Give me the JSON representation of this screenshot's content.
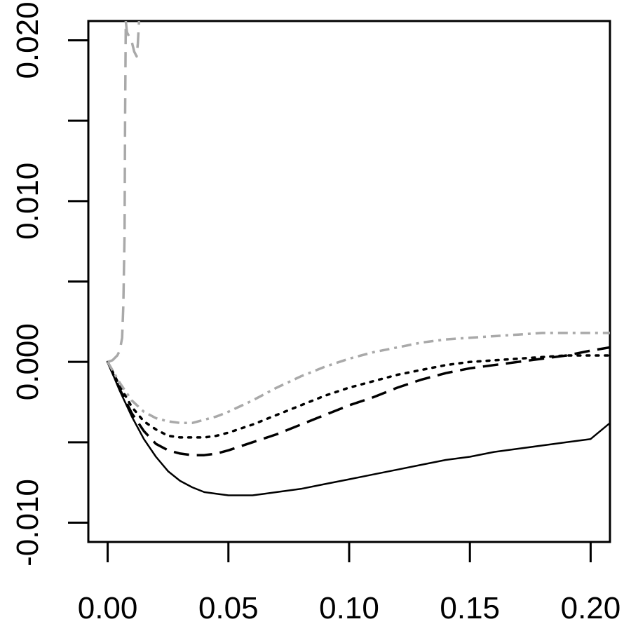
{
  "chart_data": {
    "type": "line",
    "title": "",
    "xlabel": "",
    "ylabel": "",
    "xlim": [
      -0.008,
      0.208
    ],
    "ylim": [
      -0.0112,
      0.0212
    ],
    "x_ticks": [
      0.0,
      0.05,
      0.1,
      0.15,
      0.2
    ],
    "x_tick_labels": [
      "0.00",
      "0.05",
      "0.10",
      "0.15",
      "0.20"
    ],
    "y_ticks": [
      -0.01,
      -0.005,
      0.0,
      0.005,
      0.01,
      0.015,
      0.02
    ],
    "y_tick_labels": [
      "-0.010",
      "",
      "0.000",
      "",
      "0.010",
      "",
      "0.020"
    ],
    "grid": false,
    "legend": "none",
    "series": [
      {
        "style": "solid",
        "color": "#000000",
        "x": [
          0.0,
          0.005,
          0.01,
          0.015,
          0.02,
          0.025,
          0.03,
          0.035,
          0.04,
          0.045,
          0.05,
          0.055,
          0.06,
          0.065,
          0.07,
          0.08,
          0.09,
          0.1,
          0.11,
          0.12,
          0.13,
          0.14,
          0.15,
          0.16,
          0.17,
          0.18,
          0.19,
          0.2,
          0.208
        ],
        "y": [
          0.0,
          -0.0018,
          -0.0034,
          -0.0048,
          -0.0059,
          -0.0068,
          -0.0074,
          -0.0078,
          -0.0081,
          -0.0082,
          -0.0083,
          -0.0083,
          -0.0083,
          -0.0082,
          -0.0081,
          -0.0079,
          -0.0076,
          -0.0073,
          -0.007,
          -0.0067,
          -0.0064,
          -0.0061,
          -0.0059,
          -0.0056,
          -0.0054,
          -0.0052,
          -0.005,
          -0.0048,
          -0.0038
        ]
      },
      {
        "style": "dashed",
        "color": "#000000",
        "x": [
          0.0,
          0.005,
          0.01,
          0.015,
          0.02,
          0.025,
          0.03,
          0.035,
          0.04,
          0.045,
          0.05,
          0.06,
          0.07,
          0.08,
          0.09,
          0.1,
          0.11,
          0.12,
          0.13,
          0.14,
          0.15,
          0.16,
          0.17,
          0.18,
          0.19,
          0.2,
          0.208
        ],
        "y": [
          0.0,
          -0.0017,
          -0.0032,
          -0.0043,
          -0.0051,
          -0.0055,
          -0.0057,
          -0.0058,
          -0.0058,
          -0.0057,
          -0.0055,
          -0.005,
          -0.0045,
          -0.0039,
          -0.0033,
          -0.0027,
          -0.0022,
          -0.0016,
          -0.0011,
          -0.0007,
          -0.0004,
          -0.0002,
          0.0,
          0.0002,
          0.0004,
          0.0007,
          0.0009
        ]
      },
      {
        "style": "dotted",
        "color": "#000000",
        "x": [
          0.0,
          0.005,
          0.01,
          0.015,
          0.02,
          0.025,
          0.03,
          0.035,
          0.04,
          0.045,
          0.05,
          0.06,
          0.07,
          0.08,
          0.09,
          0.1,
          0.11,
          0.12,
          0.13,
          0.14,
          0.15,
          0.16,
          0.17,
          0.18,
          0.19,
          0.2,
          0.208
        ],
        "y": [
          0.0,
          -0.0015,
          -0.0028,
          -0.0037,
          -0.0042,
          -0.0046,
          -0.0047,
          -0.0047,
          -0.0047,
          -0.0046,
          -0.0044,
          -0.0039,
          -0.0033,
          -0.0027,
          -0.0021,
          -0.0016,
          -0.0012,
          -0.0008,
          -0.0005,
          -0.0002,
          0.0,
          0.0001,
          0.0002,
          0.0003,
          0.0004,
          0.0004,
          0.0004
        ]
      },
      {
        "style": "dash-dot",
        "color": "#a9a9a9",
        "x": [
          0.0,
          0.005,
          0.01,
          0.015,
          0.02,
          0.025,
          0.03,
          0.035,
          0.04,
          0.045,
          0.05,
          0.06,
          0.07,
          0.08,
          0.09,
          0.1,
          0.11,
          0.12,
          0.13,
          0.14,
          0.15,
          0.16,
          0.17,
          0.18,
          0.19,
          0.2,
          0.208
        ],
        "y": [
          0.0,
          -0.0013,
          -0.0024,
          -0.0031,
          -0.0035,
          -0.0037,
          -0.0038,
          -0.0038,
          -0.0036,
          -0.0034,
          -0.0031,
          -0.0024,
          -0.0016,
          -0.0009,
          -0.0003,
          0.0002,
          0.0006,
          0.0009,
          0.0012,
          0.0014,
          0.0015,
          0.0016,
          0.0017,
          0.0018,
          0.0018,
          0.0018,
          0.0018
        ]
      },
      {
        "style": "dashed",
        "color": "#a9a9a9",
        "x": [
          0.0,
          0.002,
          0.004,
          0.005,
          0.006,
          0.0065,
          0.007,
          0.0072,
          0.0075,
          0.008,
          0.009,
          0.01,
          0.011,
          0.012,
          0.0125,
          0.013
        ],
        "y": [
          0.0,
          0.0001,
          0.0004,
          0.0007,
          0.0015,
          0.0035,
          0.008,
          0.015,
          0.0212,
          0.0205,
          0.0202,
          0.0199,
          0.0193,
          0.019,
          0.0198,
          0.0212
        ]
      }
    ]
  }
}
